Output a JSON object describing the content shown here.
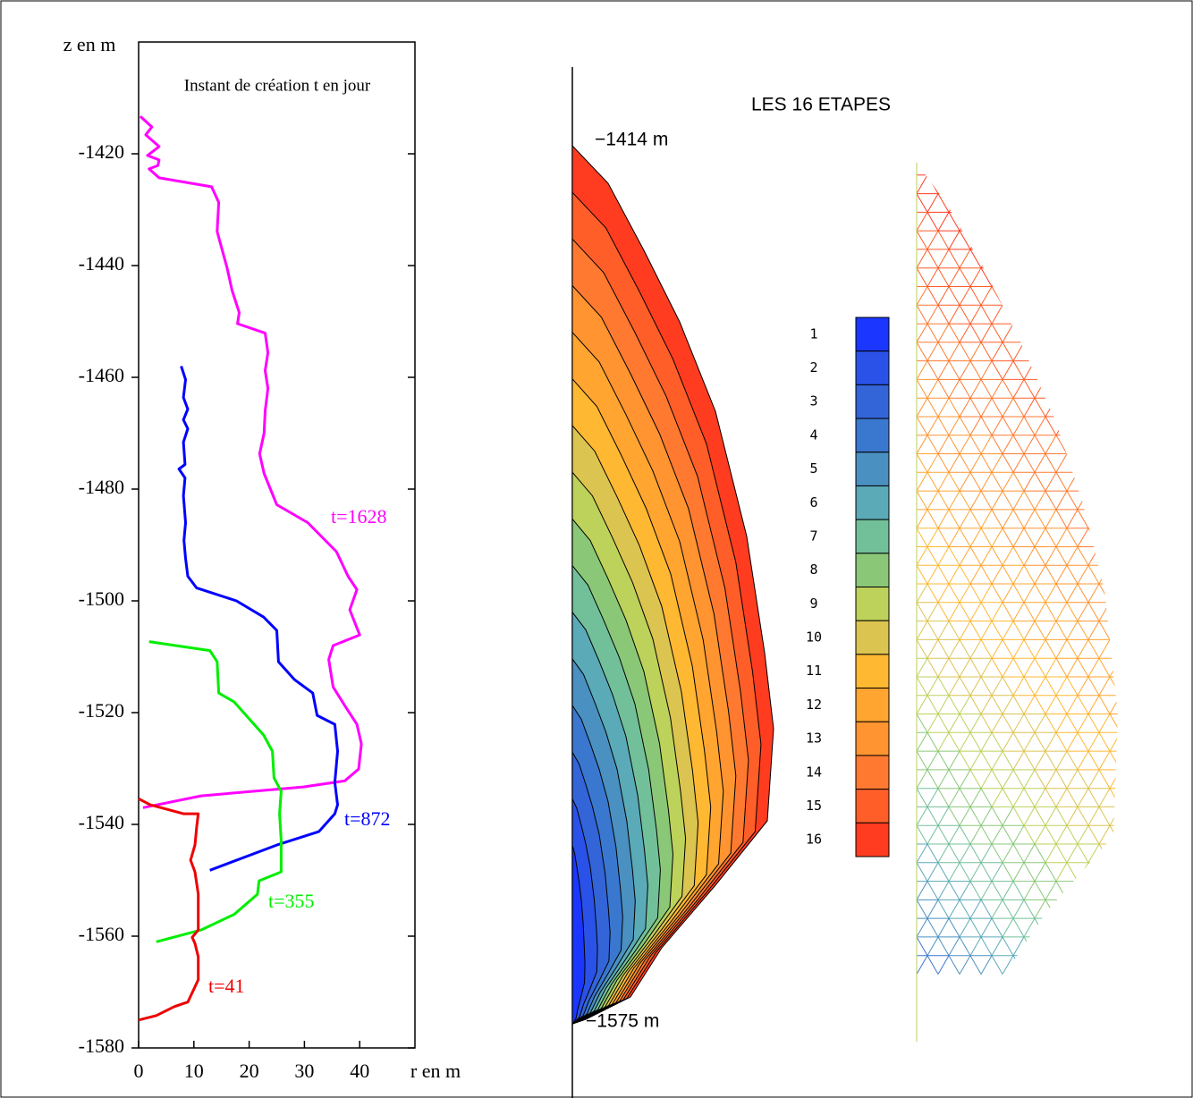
{
  "chart_data": [
    {
      "type": "line",
      "title": "Instant de création t en jour",
      "xlabel": "r en m",
      "ylabel": "z en m",
      "xlim": [
        0,
        50
      ],
      "ylim": [
        -1580,
        -1400
      ],
      "xticks": [
        0,
        10,
        20,
        30,
        40
      ],
      "yticks": [
        -1580,
        -1560,
        -1540,
        -1520,
        -1500,
        -1480,
        -1460,
        -1440,
        -1420
      ],
      "series": [
        {
          "name": "t=1628",
          "color": "#ff00ff",
          "x": [
            0.3,
            2.4,
            1.3,
            3.7,
            1.6,
            3.7,
            3.5,
            1.9,
            3.7,
            13.2,
            14.5,
            14.2,
            16.0,
            16.9,
            18.2,
            17.9,
            22.9,
            23.4,
            22.9,
            23.4,
            22.9,
            22.7,
            21.9,
            22.7,
            25.0,
            30.6,
            35.8,
            37.9,
            39.5,
            38.2,
            40.0,
            35.2,
            34.4,
            35.2,
            37.4,
            39.5,
            40.3,
            39.8,
            37.3,
            29.8,
            11.3,
            0.8
          ],
          "y": [
            -1413.3,
            -1415.2,
            -1416.6,
            -1418.7,
            -1420.3,
            -1421.1,
            -1422.1,
            -1422.7,
            -1424.3,
            -1425.9,
            -1428.7,
            -1433.9,
            -1440.4,
            -1444.4,
            -1448.4,
            -1450.4,
            -1452.1,
            -1455.6,
            -1458.8,
            -1462.0,
            -1466.0,
            -1470.0,
            -1473.7,
            -1477.2,
            -1482.8,
            -1486.0,
            -1491.2,
            -1495.6,
            -1498.0,
            -1501.6,
            -1506.1,
            -1508.0,
            -1510.5,
            -1515.4,
            -1518.9,
            -1522.1,
            -1525.6,
            -1530.1,
            -1532.2,
            -1533.3,
            -1534.9,
            -1537.0
          ]
        },
        {
          "name": "t=872",
          "color": "#0000ff",
          "x": [
            7.7,
            8.5,
            8.1,
            8.9,
            8.1,
            8.9,
            8.1,
            8.4,
            7.3,
            8.4,
            8.1,
            8.5,
            8.2,
            8.5,
            8.9,
            10.5,
            17.7,
            22.6,
            25.0,
            25.3,
            28.2,
            31.5,
            32.3,
            35.5,
            36.0,
            35.5,
            36.0,
            35.5,
            32.6,
            25.0,
            12.9
          ],
          "y": [
            -1458.0,
            -1460.4,
            -1463.6,
            -1465.7,
            -1467.6,
            -1469.2,
            -1471.6,
            -1475.6,
            -1476.4,
            -1478.0,
            -1481.2,
            -1486.0,
            -1489.2,
            -1492.4,
            -1495.6,
            -1497.7,
            -1500.0,
            -1502.9,
            -1505.3,
            -1510.9,
            -1514.1,
            -1516.5,
            -1520.5,
            -1522.1,
            -1526.9,
            -1532.5,
            -1536.5,
            -1538.1,
            -1541.3,
            -1543.7,
            -1548.2
          ]
        },
        {
          "name": "t=355",
          "color": "#00ee00",
          "x": [
            1.9,
            12.9,
            14.2,
            14.5,
            17.3,
            22.6,
            24.2,
            24.5,
            25.8,
            25.5,
            25.8,
            25.8,
            21.8,
            21.5,
            17.3,
            11.3,
            3.2
          ],
          "y": [
            -1507.3,
            -1508.9,
            -1510.9,
            -1516.5,
            -1518.1,
            -1524.0,
            -1526.9,
            -1531.7,
            -1534.1,
            -1538.1,
            -1542.9,
            -1548.5,
            -1550.1,
            -1552.5,
            -1556.1,
            -1558.9,
            -1561.0
          ]
        },
        {
          "name": "t=41",
          "color": "#ee0000",
          "x": [
            0,
            2.1,
            8.1,
            10.8,
            10.5,
            10.2,
            9.4,
            10.2,
            10.8,
            10.8,
            9.7,
            10.2,
            10.8,
            10.8,
            8.9,
            6.5,
            3.2,
            0
          ],
          "y": [
            -1535.4,
            -1536.5,
            -1538.1,
            -1538.1,
            -1540.5,
            -1543.7,
            -1546.4,
            -1548.5,
            -1552.5,
            -1558.9,
            -1560.2,
            -1561.3,
            -1563.7,
            -1567.8,
            -1571.8,
            -1572.6,
            -1574.2,
            -1575.0
          ]
        }
      ]
    },
    {
      "type": "contour",
      "title": "LES 16 ETAPES",
      "annotations": [
        "−1414 m",
        "−1575 m"
      ],
      "levels": [
        1,
        2,
        3,
        4,
        5,
        6,
        7,
        8,
        9,
        10,
        11,
        12,
        13,
        14,
        15,
        16
      ],
      "colors": [
        "#1a36ff",
        "#2a52e8",
        "#3364d8",
        "#3a78d0",
        "#4a90c0",
        "#5aaab8",
        "#72c09a",
        "#8ac878",
        "#bcd25a",
        "#dcc450",
        "#ffb832",
        "#ffa530",
        "#ff9430",
        "#ff7a30",
        "#ff5e28",
        "#ff3c20"
      ]
    }
  ]
}
